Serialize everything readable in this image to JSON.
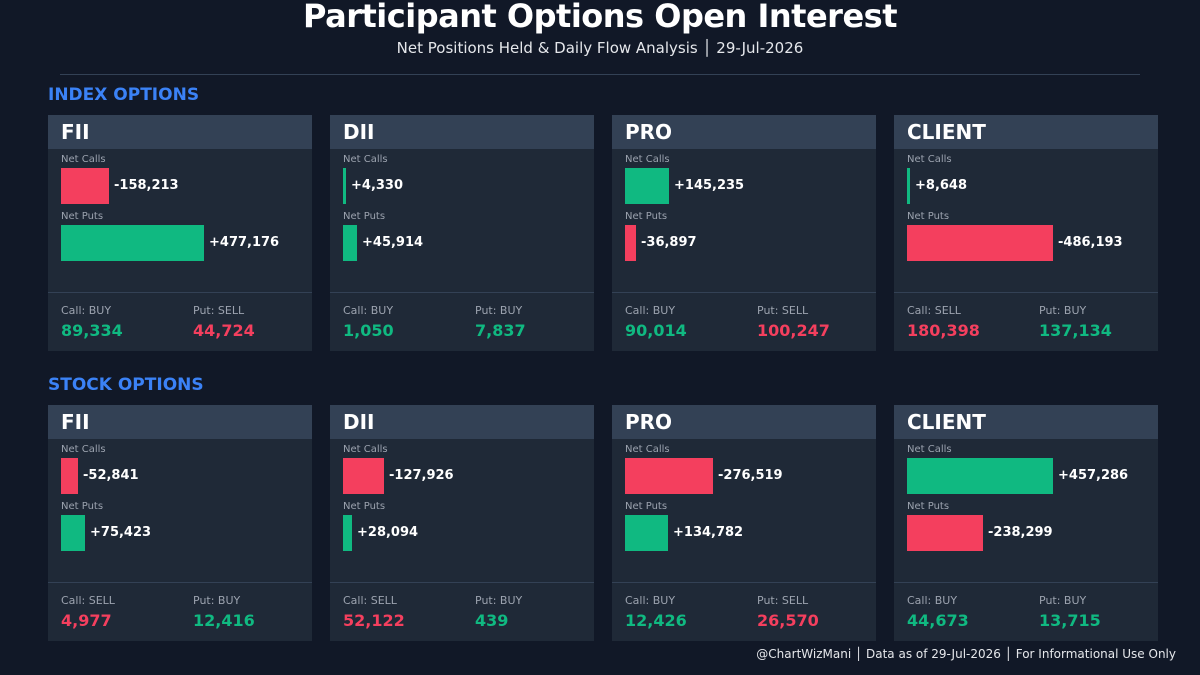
{
  "header": {
    "title": "Participant Options Open Interest",
    "subtitle": "Net Positions Held & Daily Flow Analysis  │  29-Jul-2026"
  },
  "labels": {
    "net_calls": "Net Calls",
    "net_puts": "Net Puts"
  },
  "colors": {
    "positive": "#10b981",
    "negative": "#f43f5e"
  },
  "chart_data": {
    "type": "bar",
    "sections": [
      {
        "title": "INDEX OPTIONS",
        "max_abs": 486193,
        "cards": [
          {
            "name": "FII",
            "net_calls": -158213,
            "net_calls_label": "-158,213",
            "net_puts": 477176,
            "net_puts_label": "+477,176",
            "call_flow": {
              "label": "Call: BUY",
              "value": "89,334",
              "dir": "buy"
            },
            "put_flow": {
              "label": "Put: SELL",
              "value": "44,724",
              "dir": "sell"
            }
          },
          {
            "name": "DII",
            "net_calls": 4330,
            "net_calls_label": "+4,330",
            "net_puts": 45914,
            "net_puts_label": "+45,914",
            "call_flow": {
              "label": "Call: BUY",
              "value": "1,050",
              "dir": "buy"
            },
            "put_flow": {
              "label": "Put: BUY",
              "value": "7,837",
              "dir": "buy"
            }
          },
          {
            "name": "PRO",
            "net_calls": 145235,
            "net_calls_label": "+145,235",
            "net_puts": -36897,
            "net_puts_label": "-36,897",
            "call_flow": {
              "label": "Call: BUY",
              "value": "90,014",
              "dir": "buy"
            },
            "put_flow": {
              "label": "Put: SELL",
              "value": "100,247",
              "dir": "sell"
            }
          },
          {
            "name": "CLIENT",
            "net_calls": 8648,
            "net_calls_label": "+8,648",
            "net_puts": -486193,
            "net_puts_label": "-486,193",
            "call_flow": {
              "label": "Call: SELL",
              "value": "180,398",
              "dir": "sell"
            },
            "put_flow": {
              "label": "Put: BUY",
              "value": "137,134",
              "dir": "buy"
            }
          }
        ]
      },
      {
        "title": "STOCK OPTIONS",
        "max_abs": 457286,
        "cards": [
          {
            "name": "FII",
            "net_calls": -52841,
            "net_calls_label": "-52,841",
            "net_puts": 75423,
            "net_puts_label": "+75,423",
            "call_flow": {
              "label": "Call: SELL",
              "value": "4,977",
              "dir": "sell"
            },
            "put_flow": {
              "label": "Put: BUY",
              "value": "12,416",
              "dir": "buy"
            }
          },
          {
            "name": "DII",
            "net_calls": -127926,
            "net_calls_label": "-127,926",
            "net_puts": 28094,
            "net_puts_label": "+28,094",
            "call_flow": {
              "label": "Call: SELL",
              "value": "52,122",
              "dir": "sell"
            },
            "put_flow": {
              "label": "Put: BUY",
              "value": "439",
              "dir": "buy"
            }
          },
          {
            "name": "PRO",
            "net_calls": -276519,
            "net_calls_label": "-276,519",
            "net_puts": 134782,
            "net_puts_label": "+134,782",
            "call_flow": {
              "label": "Call: BUY",
              "value": "12,426",
              "dir": "buy"
            },
            "put_flow": {
              "label": "Put: SELL",
              "value": "26,570",
              "dir": "sell"
            }
          },
          {
            "name": "CLIENT",
            "net_calls": 457286,
            "net_calls_label": "+457,286",
            "net_puts": -238299,
            "net_puts_label": "-238,299",
            "call_flow": {
              "label": "Call: BUY",
              "value": "44,673",
              "dir": "buy"
            },
            "put_flow": {
              "label": "Put: BUY",
              "value": "13,715",
              "dir": "buy"
            }
          }
        ]
      }
    ]
  },
  "footer": {
    "text": "@ChartWizMani │ Data as of 29-Jul-2026 │ For Informational Use Only"
  }
}
